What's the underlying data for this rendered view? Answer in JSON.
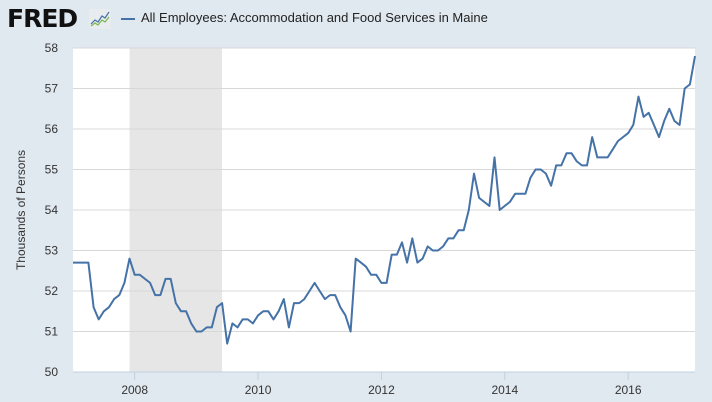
{
  "header": {
    "logo_text": "FRED",
    "series_title": "All Employees: Accommodation and Food Services in Maine",
    "series_color": "#4572a7"
  },
  "chart_data": {
    "type": "line",
    "title": "All Employees: Accommodation and Food Services in Maine",
    "xlabel": "",
    "ylabel": "Thousands of Persons",
    "ylim": [
      50,
      58
    ],
    "yticks": [
      50,
      51,
      52,
      53,
      54,
      55,
      56,
      57,
      58
    ],
    "xticks": [
      "2008",
      "2010",
      "2012",
      "2014",
      "2016"
    ],
    "x_start": "2007-01",
    "x_end": "2017-01",
    "frequency": "monthly",
    "grid": true,
    "recession_shading": {
      "start": "2007-12",
      "end": "2009-06"
    },
    "series": [
      {
        "name": "All Employees: Accommodation and Food Services in Maine",
        "values": [
          52.7,
          52.7,
          52.7,
          52.7,
          51.6,
          51.3,
          51.5,
          51.6,
          51.8,
          51.9,
          52.2,
          52.8,
          52.4,
          52.4,
          52.3,
          52.2,
          51.9,
          51.9,
          52.3,
          52.3,
          51.7,
          51.5,
          51.5,
          51.2,
          51.0,
          51.0,
          51.1,
          51.1,
          51.6,
          51.7,
          50.7,
          51.2,
          51.1,
          51.3,
          51.3,
          51.2,
          51.4,
          51.5,
          51.5,
          51.3,
          51.5,
          51.8,
          51.1,
          51.7,
          51.7,
          51.8,
          52.0,
          52.2,
          52.0,
          51.8,
          51.9,
          51.9,
          51.6,
          51.4,
          51.0,
          52.8,
          52.7,
          52.6,
          52.4,
          52.4,
          52.2,
          52.2,
          52.9,
          52.9,
          53.2,
          52.7,
          53.3,
          52.7,
          52.8,
          53.1,
          53.0,
          53.0,
          53.1,
          53.3,
          53.3,
          53.5,
          53.5,
          54.0,
          54.9,
          54.3,
          54.2,
          54.1,
          55.3,
          54.0,
          54.1,
          54.2,
          54.4,
          54.4,
          54.4,
          54.8,
          55.0,
          55.0,
          54.9,
          54.6,
          55.1,
          55.1,
          55.4,
          55.4,
          55.2,
          55.1,
          55.1,
          55.8,
          55.3,
          55.3,
          55.3,
          55.5,
          55.7,
          55.8,
          55.9,
          56.1,
          56.8,
          56.3,
          56.4,
          56.1,
          55.8,
          56.2,
          56.5,
          56.2,
          56.1,
          57.0,
          57.1,
          57.8
        ]
      }
    ]
  }
}
